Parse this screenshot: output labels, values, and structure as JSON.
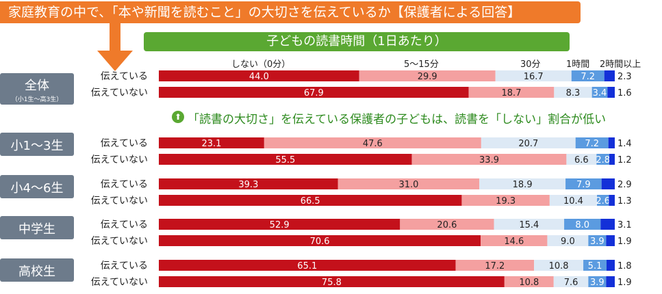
{
  "header": {
    "title": "家庭教育の中で、「本や新聞を読むこと」の大切さを伝えているか【保護者による回答】",
    "subtitle": "子どもの読書時間（1日あたり）"
  },
  "note": "「読書の大切さ」を伝えている保護者の子どもは、読書を「しない」割合が低い",
  "colors": {
    "banner": "#ef7a2a",
    "subbanner": "#5aa832",
    "series": [
      "#c4111b",
      "#f4a0a0",
      "#dde9f5",
      "#5b9be0",
      "#1330d8"
    ]
  },
  "chart_data": {
    "type": "bar",
    "orientation": "horizontal-stacked-100",
    "series_names": [
      "しない（0分）",
      "5〜15分",
      "30分",
      "1時間",
      "2時間以上"
    ],
    "groups": [
      {
        "label": "全体",
        "sublabel": "（小1生〜高3生）",
        "rows": [
          {
            "label": "伝えている",
            "values": [
              44.0,
              29.9,
              16.7,
              7.2,
              2.3
            ],
            "labels": [
              "44.0",
              "29.9",
              "16.7",
              "7.2",
              "2.3"
            ]
          },
          {
            "label": "伝えていない",
            "values": [
              67.9,
              18.7,
              8.3,
              3.4,
              1.6
            ],
            "labels": [
              "67.9",
              "18.7",
              "8.3",
              "3.4",
              "1.6"
            ]
          }
        ]
      },
      {
        "label": "小1〜3生",
        "sublabel": "",
        "rows": [
          {
            "label": "伝えている",
            "values": [
              23.1,
              47.6,
              20.7,
              7.2,
              1.4
            ],
            "labels": [
              "23.1",
              "47.6",
              "20.7",
              "7.2",
              "1.4"
            ]
          },
          {
            "label": "伝えていない",
            "values": [
              55.5,
              33.9,
              6.6,
              2.8,
              1.2
            ],
            "labels": [
              "55.5",
              "33.9",
              "6.6",
              "2.8",
              "1.2"
            ]
          }
        ]
      },
      {
        "label": "小4〜6生",
        "sublabel": "",
        "rows": [
          {
            "label": "伝えている",
            "values": [
              39.3,
              31.0,
              18.9,
              7.9,
              2.9
            ],
            "labels": [
              "39.3",
              "31.0",
              "18.9",
              "7.9",
              "2.9"
            ]
          },
          {
            "label": "伝えていない",
            "values": [
              66.5,
              19.3,
              10.4,
              2.6,
              1.3
            ],
            "labels": [
              "66.5",
              "19.3",
              "10.4",
              "2.6",
              "1.3"
            ]
          }
        ]
      },
      {
        "label": "中学生",
        "sublabel": "",
        "rows": [
          {
            "label": "伝えている",
            "values": [
              52.9,
              20.6,
              15.4,
              8.0,
              3.1
            ],
            "labels": [
              "52.9",
              "20.6",
              "15.4",
              "8.0",
              "3.1"
            ]
          },
          {
            "label": "伝えていない",
            "values": [
              70.6,
              14.6,
              9.0,
              3.9,
              1.9
            ],
            "labels": [
              "70.6",
              "14.6",
              "9.0",
              "3.9",
              "1.9"
            ]
          }
        ]
      },
      {
        "label": "高校生",
        "sublabel": "",
        "rows": [
          {
            "label": "伝えている",
            "values": [
              65.1,
              17.2,
              10.8,
              5.1,
              1.8
            ],
            "labels": [
              "65.1",
              "17.2",
              "10.8",
              "5.1",
              "1.8"
            ]
          },
          {
            "label": "伝えていない",
            "values": [
              75.8,
              10.8,
              7.6,
              3.9,
              1.9
            ],
            "labels": [
              "75.8",
              "10.8",
              "7.6",
              "3.9",
              "1.9"
            ]
          }
        ]
      }
    ]
  }
}
